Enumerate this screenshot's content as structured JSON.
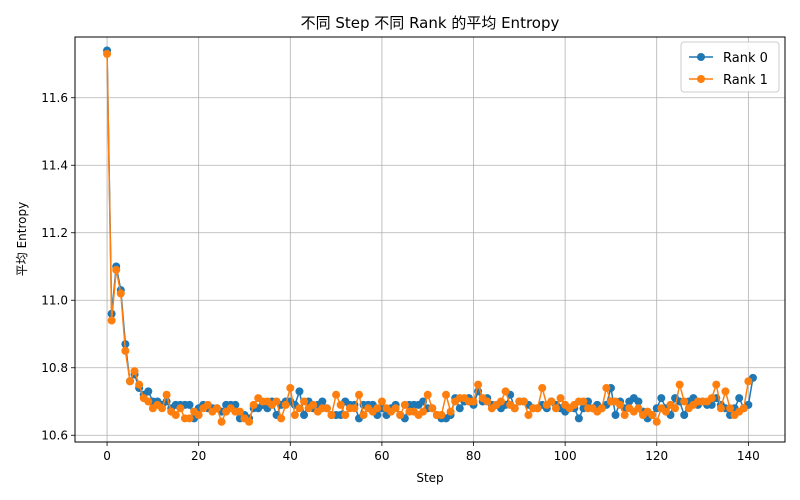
{
  "chart_data": {
    "type": "line",
    "title": "不同 Step 不同 Rank 的平均 Entropy",
    "xlabel": "Step",
    "ylabel": "平均 Entropy",
    "xlim": [
      -7,
      148
    ],
    "ylim": [
      10.58,
      11.78
    ],
    "x_ticks": [
      0,
      20,
      40,
      60,
      80,
      100,
      120,
      140
    ],
    "y_ticks": [
      10.6,
      10.8,
      11.0,
      11.2,
      11.4,
      11.6
    ],
    "y_tick_labels": [
      "10.6",
      "10.8",
      "11.0",
      "11.2",
      "11.4",
      "11.6"
    ],
    "grid": true,
    "legend_position": "top-right",
    "series": [
      {
        "name": "Rank 0",
        "color": "#1f77b4",
        "values": [
          11.74,
          10.96,
          11.1,
          11.03,
          10.87,
          10.76,
          10.78,
          10.74,
          10.72,
          10.73,
          10.7,
          10.7,
          10.69,
          10.7,
          10.68,
          10.69,
          10.69,
          10.69,
          10.69,
          10.65,
          10.68,
          10.69,
          10.68,
          10.68,
          10.68,
          10.67,
          10.69,
          10.69,
          10.69,
          10.65,
          10.66,
          10.65,
          10.68,
          10.68,
          10.69,
          10.68,
          10.7,
          10.66,
          10.69,
          10.7,
          10.7,
          10.69,
          10.73,
          10.66,
          10.7,
          10.68,
          10.69,
          10.7,
          10.68,
          10.66,
          10.66,
          10.66,
          10.7,
          10.69,
          10.69,
          10.65,
          10.69,
          10.69,
          10.69,
          10.66,
          10.68,
          10.66,
          10.68,
          10.69,
          10.66,
          10.65,
          10.69,
          10.69,
          10.69,
          10.7,
          10.68,
          10.68,
          10.66,
          10.65,
          10.65,
          10.66,
          10.71,
          10.68,
          10.7,
          10.71,
          10.69,
          10.73,
          10.7,
          10.71,
          10.69,
          10.69,
          10.68,
          10.69,
          10.72,
          10.68,
          10.7,
          10.7,
          10.69,
          10.68,
          10.68,
          10.69,
          10.68,
          10.7,
          10.69,
          10.68,
          10.67,
          10.68,
          10.68,
          10.65,
          10.68,
          10.7,
          10.68,
          10.69,
          10.68,
          10.69,
          10.74,
          10.66,
          10.7,
          10.68,
          10.7,
          10.71,
          10.7,
          10.67,
          10.65,
          10.66,
          10.68,
          10.71,
          10.68,
          10.66,
          10.71,
          10.7,
          10.66,
          10.7,
          10.71,
          10.69,
          10.7,
          10.69,
          10.69,
          10.71,
          10.69,
          10.68,
          10.66,
          10.68,
          10.71,
          10.68,
          10.69,
          10.77
        ]
      },
      {
        "name": "Rank 1",
        "color": "#ff7f0e",
        "values": [
          11.73,
          10.94,
          11.09,
          11.02,
          10.85,
          10.76,
          10.79,
          10.75,
          10.71,
          10.7,
          10.68,
          10.69,
          10.68,
          10.72,
          10.67,
          10.66,
          10.68,
          10.65,
          10.65,
          10.67,
          10.66,
          10.68,
          10.69,
          10.67,
          10.68,
          10.64,
          10.67,
          10.68,
          10.67,
          10.67,
          10.65,
          10.64,
          10.69,
          10.71,
          10.7,
          10.7,
          10.69,
          10.7,
          10.65,
          10.69,
          10.74,
          10.66,
          10.68,
          10.7,
          10.68,
          10.69,
          10.67,
          10.68,
          10.68,
          10.66,
          10.72,
          10.69,
          10.66,
          10.68,
          10.68,
          10.72,
          10.66,
          10.68,
          10.67,
          10.68,
          10.7,
          10.68,
          10.67,
          10.68,
          10.66,
          10.69,
          10.67,
          10.67,
          10.66,
          10.67,
          10.72,
          10.68,
          10.66,
          10.66,
          10.72,
          10.67,
          10.7,
          10.71,
          10.71,
          10.7,
          10.7,
          10.75,
          10.71,
          10.7,
          10.68,
          10.69,
          10.7,
          10.73,
          10.69,
          10.68,
          10.7,
          10.7,
          10.66,
          10.68,
          10.68,
          10.74,
          10.69,
          10.7,
          10.68,
          10.71,
          10.69,
          10.68,
          10.69,
          10.7,
          10.7,
          10.68,
          10.68,
          10.67,
          10.68,
          10.74,
          10.7,
          10.7,
          10.69,
          10.66,
          10.68,
          10.67,
          10.68,
          10.66,
          10.67,
          10.66,
          10.64,
          10.68,
          10.67,
          10.69,
          10.68,
          10.75,
          10.7,
          10.68,
          10.69,
          10.7,
          10.7,
          10.7,
          10.71,
          10.75,
          10.68,
          10.73,
          10.68,
          10.66,
          10.67,
          10.68,
          10.76
        ]
      }
    ]
  }
}
